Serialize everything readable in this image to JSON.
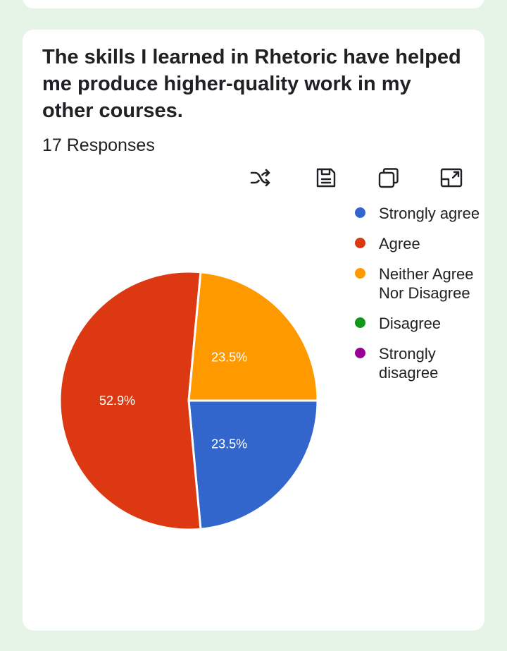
{
  "question": {
    "title": "The skills I learned in Rhetoric have helped me produce higher-quality work in my other courses.",
    "responses_label": "17 Responses"
  },
  "toolbar": {
    "icons": [
      "shuffle-icon",
      "save-icon",
      "copy-icon",
      "expand-icon"
    ]
  },
  "chart_data": {
    "type": "pie",
    "categories": [
      "Strongly agree",
      "Agree",
      "Neither Agree Nor Disagree",
      "Disagree",
      "Strongly disagree"
    ],
    "values": [
      23.5,
      52.9,
      23.5,
      0,
      0
    ],
    "slice_labels": [
      "23.5%",
      "52.9%",
      "23.5%",
      "",
      ""
    ],
    "colors": [
      "#3366cc",
      "#dc3912",
      "#ff9900",
      "#109618",
      "#990099"
    ],
    "legend_position": "right",
    "title": "",
    "total_responses": 17
  }
}
